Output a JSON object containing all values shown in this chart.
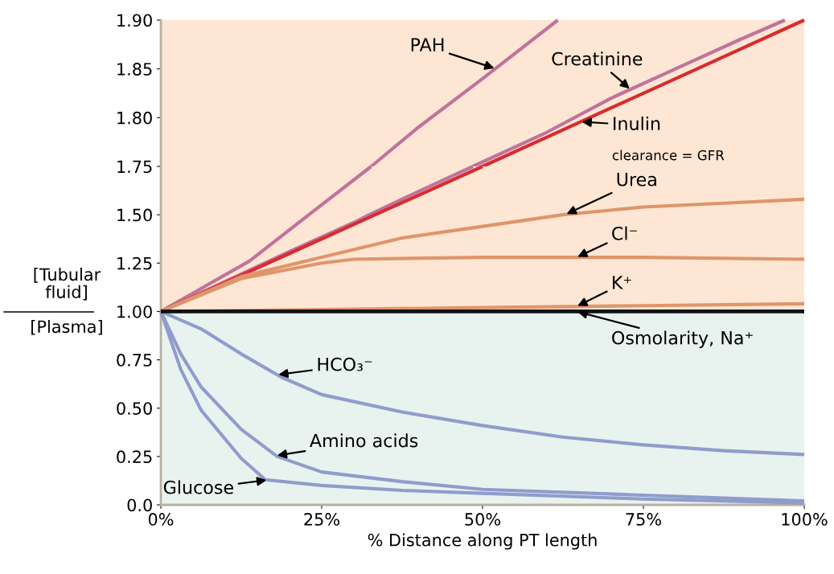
{
  "chart_data": [
    {
      "type": "line",
      "xlim": [
        0,
        100
      ],
      "ylim": [
        1.75,
        1.9
      ],
      "yticks": [
        {
          "value": 1.8,
          "label": "1.80"
        },
        {
          "value": 1.85,
          "label": "1.85"
        },
        {
          "value": 1.9,
          "label": "1.90"
        }
      ],
      "tick_labels": "y",
      "grid": false,
      "marker": "none",
      "line_style": "solid",
      "bands": [
        {
          "axis": "y",
          "from": 1.75,
          "to": 1.9,
          "label": null,
          "color": "#fde6d4"
        }
      ],
      "annotations": [
        "clearance = GFR"
      ],
      "series": [
        {
          "name": "PAH",
          "color": "#c0739c",
          "x": [
            32.7,
            40,
            50,
            61.7
          ],
          "values": [
            1.75,
            1.79,
            1.84,
            1.9
          ]
        },
        {
          "name": "Creatinine",
          "color": "#c0739c",
          "x": [
            48.5,
            60,
            70,
            80,
            90,
            97
          ],
          "values": [
            1.75,
            1.785,
            1.82,
            1.85,
            1.88,
            1.9
          ]
        },
        {
          "name": "Inulin",
          "color": "#d92b2f",
          "x": [
            50,
            60,
            70,
            80,
            90,
            100
          ],
          "values": [
            1.75,
            1.78,
            1.81,
            1.84,
            1.87,
            1.9
          ]
        }
      ]
    },
    {
      "type": "line",
      "xlabel": "% Distance along PT length",
      "ylabel": "[Tubular\nfluid]\n[Plasma]",
      "xlim": [
        0,
        100
      ],
      "xticks": [
        {
          "value": 0,
          "label": "0%"
        },
        {
          "value": 25,
          "label": "25%"
        },
        {
          "value": 50,
          "label": "50%"
        },
        {
          "value": 75,
          "label": "75%"
        },
        {
          "value": 100,
          "label": "100%"
        }
      ],
      "ylim": [
        0,
        1.75
      ],
      "yticks": [
        {
          "value": 0,
          "label": "0.0"
        },
        {
          "value": 0.25,
          "label": "0.25"
        },
        {
          "value": 0.5,
          "label": "0.50"
        },
        {
          "value": 0.75,
          "label": "0.75"
        },
        {
          "value": 1.0,
          "label": "1.00"
        },
        {
          "value": 1.25,
          "label": "1.25"
        },
        {
          "value": 1.5,
          "label": "1.50"
        },
        {
          "value": 1.75,
          "label": "1.75"
        }
      ],
      "grid": false,
      "marker": "none",
      "line_style": "solid",
      "bands": [
        {
          "axis": "y",
          "from": 0,
          "to": 1.0,
          "label": null,
          "color": "#e8f3ef"
        },
        {
          "axis": "y",
          "from": 1.0,
          "to": 1.75,
          "label": null,
          "color": "#fde6d4"
        }
      ],
      "series": [
        {
          "color": "#c0739c",
          "x": [
            0,
            13.75,
            23,
            32.7
          ],
          "values": [
            1.0,
            1.26,
            1.5,
            1.75
          ]
        },
        {
          "color": "#c0739c",
          "x": [
            0,
            10,
            20,
            30,
            32.4,
            40,
            48.5
          ],
          "values": [
            1.0,
            1.155,
            1.31,
            1.46,
            1.5,
            1.62,
            1.75
          ]
        },
        {
          "color": "#d92b2f",
          "x": [
            0,
            10,
            20,
            30,
            33.3,
            40,
            50
          ],
          "values": [
            1.0,
            1.15,
            1.3,
            1.45,
            1.5,
            1.6,
            1.75
          ]
        },
        {
          "name": "Urea",
          "color": "#df956a",
          "x": [
            0,
            6.25,
            12.5,
            25,
            37.5,
            50,
            62.5,
            75,
            87.5,
            100
          ],
          "values": [
            1.0,
            1.09,
            1.18,
            1.28,
            1.38,
            1.44,
            1.5,
            1.54,
            1.56,
            1.58
          ]
        },
        {
          "name": "Cl⁻",
          "color": "#df956a",
          "x": [
            0,
            12.5,
            25,
            30,
            50,
            75,
            100
          ],
          "values": [
            1.0,
            1.17,
            1.25,
            1.27,
            1.28,
            1.28,
            1.27
          ]
        },
        {
          "name": "K⁺",
          "color": "#df956a",
          "x": [
            0,
            25,
            50,
            75,
            100
          ],
          "values": [
            1.0,
            1.01,
            1.02,
            1.03,
            1.04
          ]
        },
        {
          "name": "Osmolarity, Na⁺",
          "color": "#111111",
          "x": [
            0,
            100
          ],
          "values": [
            1.0,
            1.0
          ]
        },
        {
          "name": "HCO₃⁻",
          "color": "#8f9ccc",
          "x": [
            0,
            6.25,
            12.5,
            18.75,
            25,
            37.5,
            50,
            62.5,
            75,
            87.5,
            100
          ],
          "values": [
            1.0,
            0.91,
            0.78,
            0.66,
            0.57,
            0.48,
            0.41,
            0.35,
            0.31,
            0.28,
            0.26
          ]
        },
        {
          "name": "Amino acids",
          "color": "#8f9ccc",
          "x": [
            0,
            3.1,
            6.25,
            12.5,
            18.1,
            25,
            37.5,
            50,
            75,
            100
          ],
          "values": [
            1.0,
            0.78,
            0.61,
            0.39,
            0.25,
            0.17,
            0.12,
            0.08,
            0.05,
            0.02
          ]
        },
        {
          "name": "Glucose",
          "color": "#8f9ccc",
          "x": [
            0,
            3.1,
            6.25,
            12.5,
            16.25,
            25,
            37.5,
            50,
            75,
            100
          ],
          "values": [
            1.0,
            0.7,
            0.49,
            0.24,
            0.13,
            0.1,
            0.075,
            0.06,
            0.03,
            0.01
          ]
        }
      ]
    }
  ]
}
